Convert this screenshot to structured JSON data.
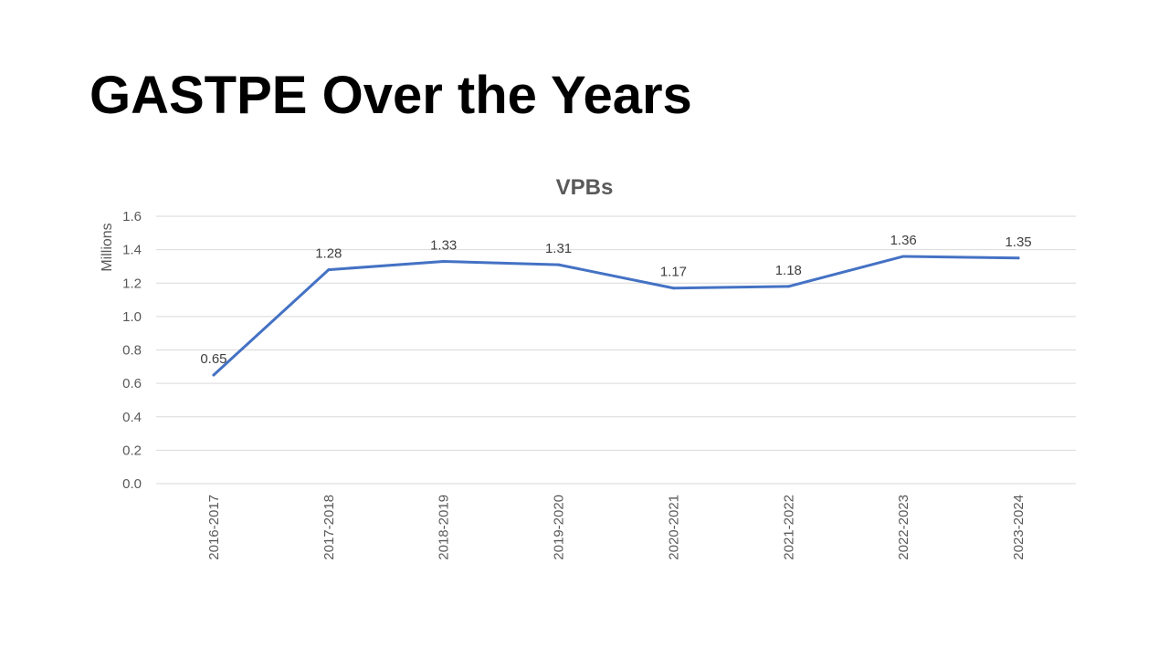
{
  "slide": {
    "title": "GASTPE Over the Years"
  },
  "colors": {
    "series_line": "#4472C4",
    "gridline": "#d9d9d9",
    "axis_text": "#595959",
    "data_label_text": "#404040"
  },
  "chart_data": {
    "type": "line",
    "title": "VPBs",
    "xlabel": "",
    "ylabel": "Millions",
    "categories": [
      "2016-2017",
      "2017-2018",
      "2018-2019",
      "2019-2020",
      "2020-2021",
      "2021-2022",
      "2022-2023",
      "2023-2024"
    ],
    "series": [
      {
        "values": [
          0.65,
          1.28,
          1.33,
          1.31,
          1.17,
          1.18,
          1.36,
          1.35
        ],
        "data_labels": [
          "0.65",
          "1.28",
          "1.33",
          "1.31",
          "1.17",
          "1.18",
          "1.36",
          "1.35"
        ]
      }
    ],
    "ylim": [
      0,
      1.6
    ],
    "yticks": [
      "0.0",
      "0.2",
      "0.4",
      "0.6",
      "0.8",
      "1.0",
      "1.2",
      "1.4",
      "1.6"
    ],
    "ytick_values": [
      0,
      0.2,
      0.4,
      0.6,
      0.8,
      1.0,
      1.2,
      1.4,
      1.6
    ],
    "grid": true,
    "legend": "none"
  }
}
